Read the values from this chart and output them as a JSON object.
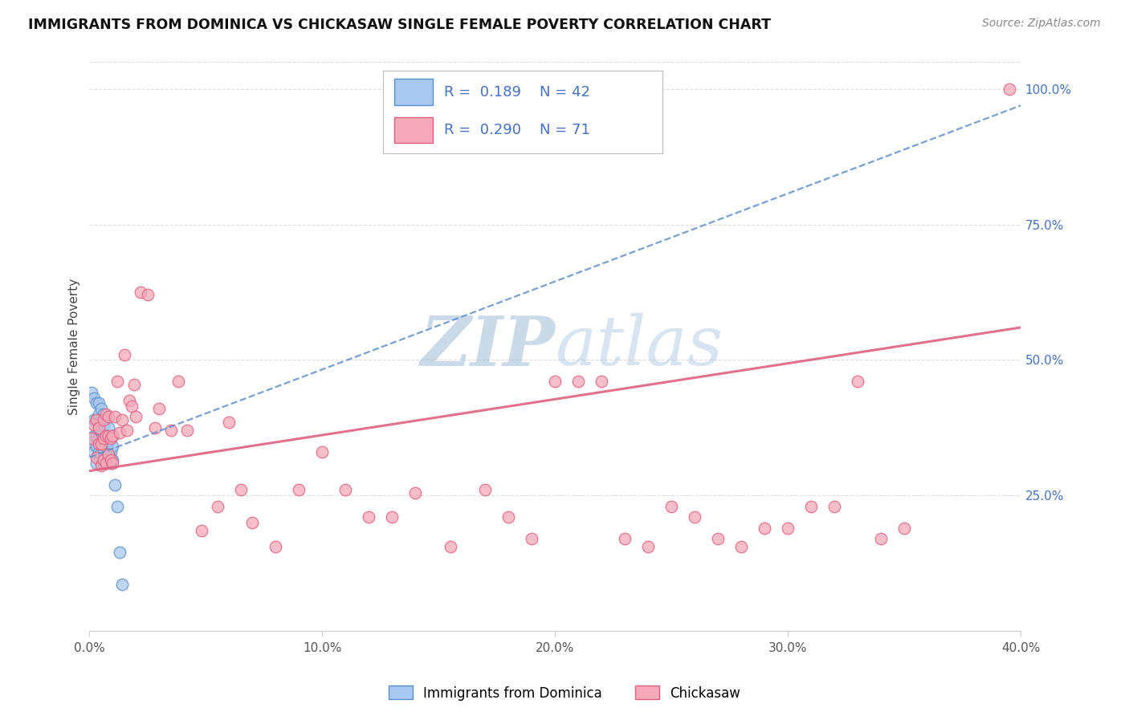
{
  "title": "IMMIGRANTS FROM DOMINICA VS CHICKASAW SINGLE FEMALE POVERTY CORRELATION CHART",
  "source": "Source: ZipAtlas.com",
  "ylabel": "Single Female Poverty",
  "legend_label_blue": "Immigrants from Dominica",
  "legend_label_pink": "Chickasaw",
  "r_blue": 0.189,
  "n_blue": 42,
  "r_pink": 0.29,
  "n_pink": 71,
  "xlim": [
    0.0,
    0.4
  ],
  "ylim": [
    0.0,
    1.05
  ],
  "xtick_labels": [
    "0.0%",
    "10.0%",
    "20.0%",
    "30.0%",
    "40.0%"
  ],
  "xtick_vals": [
    0.0,
    0.1,
    0.2,
    0.3,
    0.4
  ],
  "ytick_labels_right": [
    "25.0%",
    "50.0%",
    "75.0%",
    "100.0%"
  ],
  "ytick_vals": [
    0.25,
    0.5,
    0.75,
    1.0
  ],
  "color_blue_fill": "#A8C8F0",
  "color_pink_fill": "#F4A8B8",
  "color_blue_edge": "#5B8FC9",
  "color_pink_edge": "#E06080",
  "color_blue_line": "#6090C8",
  "color_pink_line": "#E06080",
  "color_axis_text": "#4472C4",
  "watermark_color": "#C8D8F0",
  "background_color": "#FFFFFF",
  "grid_color": "#DDDDDD",
  "blue_x": [
    0.001,
    0.001,
    0.002,
    0.002,
    0.002,
    0.002,
    0.003,
    0.003,
    0.003,
    0.003,
    0.003,
    0.004,
    0.004,
    0.004,
    0.004,
    0.004,
    0.005,
    0.005,
    0.005,
    0.005,
    0.005,
    0.005,
    0.006,
    0.006,
    0.006,
    0.006,
    0.006,
    0.007,
    0.007,
    0.007,
    0.008,
    0.008,
    0.008,
    0.009,
    0.009,
    0.01,
    0.01,
    0.01,
    0.011,
    0.012,
    0.013,
    0.014
  ],
  "blue_y": [
    0.35,
    0.44,
    0.33,
    0.36,
    0.39,
    0.43,
    0.31,
    0.34,
    0.36,
    0.39,
    0.42,
    0.33,
    0.355,
    0.375,
    0.4,
    0.42,
    0.31,
    0.33,
    0.355,
    0.37,
    0.39,
    0.41,
    0.31,
    0.33,
    0.35,
    0.38,
    0.4,
    0.31,
    0.34,
    0.36,
    0.325,
    0.35,
    0.375,
    0.31,
    0.33,
    0.315,
    0.34,
    0.36,
    0.27,
    0.23,
    0.145,
    0.085
  ],
  "pink_x": [
    0.001,
    0.002,
    0.003,
    0.003,
    0.004,
    0.004,
    0.005,
    0.005,
    0.006,
    0.006,
    0.006,
    0.007,
    0.007,
    0.007,
    0.008,
    0.008,
    0.008,
    0.009,
    0.009,
    0.01,
    0.01,
    0.011,
    0.012,
    0.013,
    0.014,
    0.015,
    0.016,
    0.017,
    0.018,
    0.019,
    0.02,
    0.022,
    0.025,
    0.028,
    0.03,
    0.035,
    0.038,
    0.042,
    0.048,
    0.055,
    0.06,
    0.065,
    0.07,
    0.08,
    0.09,
    0.1,
    0.11,
    0.12,
    0.13,
    0.14,
    0.155,
    0.17,
    0.18,
    0.19,
    0.2,
    0.21,
    0.22,
    0.23,
    0.24,
    0.25,
    0.26,
    0.27,
    0.28,
    0.29,
    0.3,
    0.31,
    0.32,
    0.33,
    0.34,
    0.35,
    0.395
  ],
  "pink_y": [
    0.355,
    0.38,
    0.32,
    0.39,
    0.345,
    0.375,
    0.305,
    0.345,
    0.315,
    0.355,
    0.39,
    0.31,
    0.36,
    0.4,
    0.325,
    0.36,
    0.395,
    0.315,
    0.355,
    0.31,
    0.36,
    0.395,
    0.46,
    0.365,
    0.39,
    0.51,
    0.37,
    0.425,
    0.415,
    0.455,
    0.395,
    0.625,
    0.62,
    0.375,
    0.41,
    0.37,
    0.46,
    0.37,
    0.185,
    0.23,
    0.385,
    0.26,
    0.2,
    0.155,
    0.26,
    0.33,
    0.26,
    0.21,
    0.21,
    0.255,
    0.155,
    0.26,
    0.21,
    0.17,
    0.46,
    0.46,
    0.46,
    0.17,
    0.155,
    0.23,
    0.21,
    0.17,
    0.155,
    0.19,
    0.19,
    0.23,
    0.23,
    0.46,
    0.17,
    0.19,
    1.0
  ],
  "blue_line_x0": 0.0,
  "blue_line_y0": 0.32,
  "blue_line_x1": 0.4,
  "blue_line_y1": 0.97,
  "pink_line_x0": 0.0,
  "pink_line_y0": 0.295,
  "pink_line_x1": 0.4,
  "pink_line_y1": 0.56
}
